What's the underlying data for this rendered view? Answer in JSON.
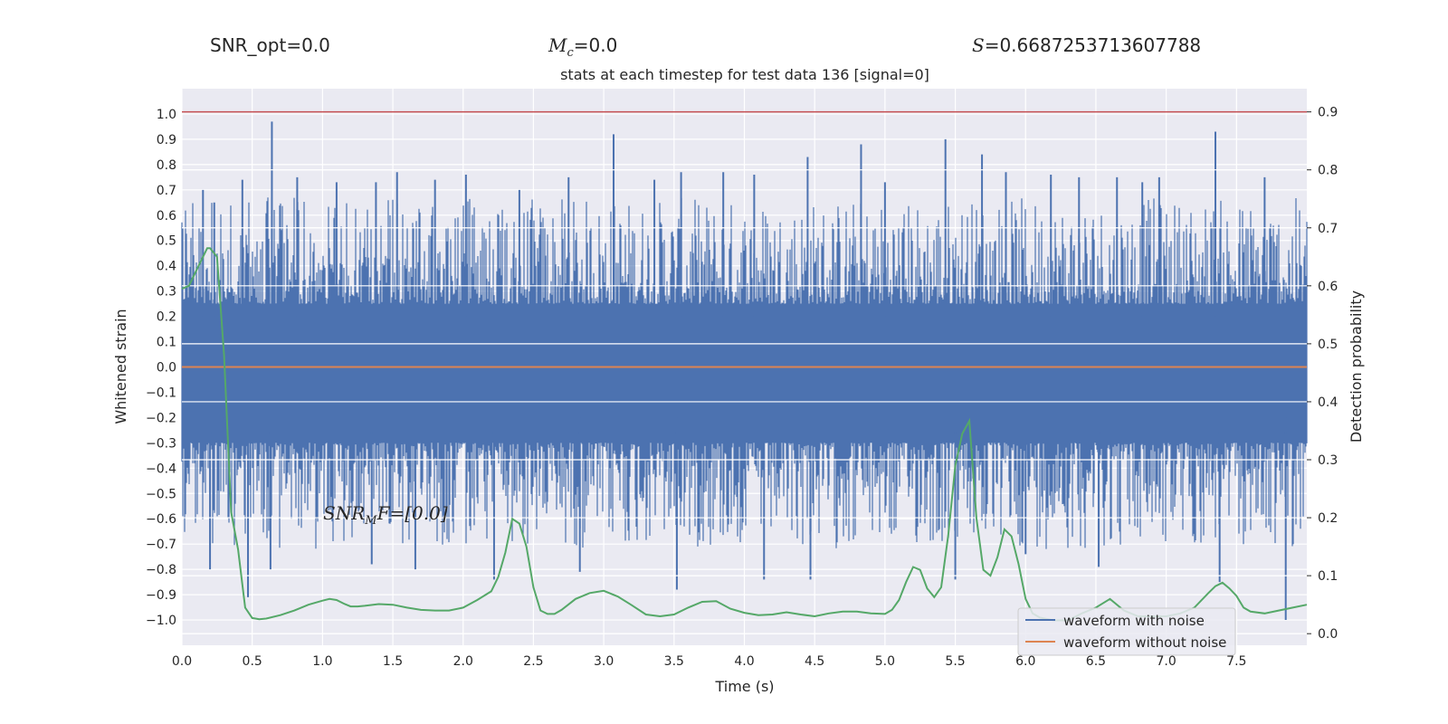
{
  "header": {
    "snr_opt_text": "SNR_opt=0.0",
    "mc_symbol": "M",
    "mc_sub": "c",
    "mc_value": "=0.0",
    "s_symbol": "S",
    "s_value": "=0.6687253713607788"
  },
  "chart_data": {
    "type": "line",
    "title": "stats at each timestep for test data 136 [signal=0]",
    "xlabel": "Time (s)",
    "ylabel": "Whitened strain",
    "y2label": "Detection probability",
    "xlim": [
      0.0,
      8.0
    ],
    "ylim": [
      -1.1,
      1.1
    ],
    "y2lim": [
      -0.02,
      0.94
    ],
    "xticks": [
      "0.0",
      "0.5",
      "1.0",
      "1.5",
      "2.0",
      "2.5",
      "3.0",
      "3.5",
      "4.0",
      "4.5",
      "5.0",
      "5.5",
      "6.0",
      "6.5",
      "7.0",
      "7.5"
    ],
    "yticks": [
      "1.0",
      "0.9",
      "0.8",
      "0.7",
      "0.6",
      "0.5",
      "0.4",
      "0.3",
      "0.2",
      "0.1",
      "0.0",
      "−0.1",
      "−0.2",
      "−0.3",
      "−0.4",
      "−0.5",
      "−0.6",
      "−0.7",
      "−0.8",
      "−0.9",
      "−1.0"
    ],
    "y2ticks": [
      "0.9",
      "0.8",
      "0.7",
      "0.6",
      "0.5",
      "0.4",
      "0.3",
      "0.2",
      "0.1",
      "0.0"
    ],
    "grid": true,
    "legend_position": "bottom-right",
    "annotation": {
      "symbol": "SNR",
      "sub": "M",
      "rest": "F=[0.0]",
      "x": 1.0,
      "y": -0.6
    },
    "threshold": {
      "value": 0.9,
      "color": "#c44e52"
    },
    "series": [
      {
        "name": "waveform with noise",
        "color": "#4c72b0",
        "axis": "left",
        "envelope_peaks": [
          {
            "x": 0.15,
            "y": 0.7
          },
          {
            "x": 0.23,
            "y": 0.65
          },
          {
            "x": 0.43,
            "y": 0.74
          },
          {
            "x": 0.64,
            "y": 0.97
          },
          {
            "x": 0.82,
            "y": 0.75
          },
          {
            "x": 1.1,
            "y": 0.73
          },
          {
            "x": 1.38,
            "y": 0.73
          },
          {
            "x": 1.53,
            "y": 0.77
          },
          {
            "x": 1.8,
            "y": 0.74
          },
          {
            "x": 2.02,
            "y": 0.76
          },
          {
            "x": 2.4,
            "y": 0.7
          },
          {
            "x": 2.75,
            "y": 0.75
          },
          {
            "x": 3.07,
            "y": 0.92
          },
          {
            "x": 3.36,
            "y": 0.74
          },
          {
            "x": 3.55,
            "y": 0.77
          },
          {
            "x": 3.85,
            "y": 0.77
          },
          {
            "x": 4.07,
            "y": 0.76
          },
          {
            "x": 4.45,
            "y": 0.83
          },
          {
            "x": 4.83,
            "y": 0.88
          },
          {
            "x": 5.0,
            "y": 0.73
          },
          {
            "x": 5.43,
            "y": 0.9
          },
          {
            "x": 5.69,
            "y": 0.84
          },
          {
            "x": 5.86,
            "y": 0.77
          },
          {
            "x": 6.18,
            "y": 0.76
          },
          {
            "x": 6.38,
            "y": 0.75
          },
          {
            "x": 6.65,
            "y": 0.75
          },
          {
            "x": 6.83,
            "y": 0.73
          },
          {
            "x": 6.95,
            "y": 0.75
          },
          {
            "x": 7.35,
            "y": 0.93
          },
          {
            "x": 7.7,
            "y": 0.75
          }
        ],
        "envelope_troughs": [
          {
            "x": 0.2,
            "y": -0.8
          },
          {
            "x": 0.47,
            "y": -0.91
          },
          {
            "x": 0.63,
            "y": -0.8
          },
          {
            "x": 1.35,
            "y": -0.78
          },
          {
            "x": 1.66,
            "y": -0.8
          },
          {
            "x": 2.22,
            "y": -0.84
          },
          {
            "x": 2.83,
            "y": -0.81
          },
          {
            "x": 3.52,
            "y": -0.88
          },
          {
            "x": 4.14,
            "y": -0.84
          },
          {
            "x": 4.47,
            "y": -0.84
          },
          {
            "x": 5.5,
            "y": -0.84
          },
          {
            "x": 6.0,
            "y": -0.74
          },
          {
            "x": 6.52,
            "y": -0.79
          },
          {
            "x": 7.38,
            "y": -0.85
          },
          {
            "x": 7.85,
            "y": -1.0
          }
        ]
      },
      {
        "name": "waveform without noise",
        "color": "#dd8452",
        "axis": "left",
        "x": [
          0.0,
          8.0
        ],
        "y": [
          0.0,
          0.0
        ]
      },
      {
        "color": "#55a868",
        "axis": "right",
        "x": [
          0.0,
          0.05,
          0.1,
          0.15,
          0.18,
          0.2,
          0.25,
          0.3,
          0.35,
          0.4,
          0.45,
          0.5,
          0.55,
          0.6,
          0.7,
          0.8,
          0.9,
          1.0,
          1.05,
          1.1,
          1.15,
          1.2,
          1.25,
          1.3,
          1.4,
          1.5,
          1.6,
          1.7,
          1.8,
          1.9,
          2.0,
          2.1,
          2.2,
          2.25,
          2.3,
          2.35,
          2.4,
          2.45,
          2.5,
          2.55,
          2.6,
          2.65,
          2.7,
          2.8,
          2.9,
          3.0,
          3.1,
          3.2,
          3.3,
          3.4,
          3.5,
          3.6,
          3.7,
          3.8,
          3.9,
          4.0,
          4.1,
          4.2,
          4.3,
          4.4,
          4.5,
          4.6,
          4.7,
          4.8,
          4.9,
          5.0,
          5.05,
          5.1,
          5.15,
          5.2,
          5.25,
          5.3,
          5.35,
          5.4,
          5.45,
          5.5,
          5.55,
          5.6,
          5.65,
          5.7,
          5.75,
          5.8,
          5.85,
          5.9,
          5.95,
          6.0,
          6.05,
          6.1,
          6.2,
          6.3,
          6.4,
          6.5,
          6.6,
          6.7,
          6.8,
          6.9,
          7.0,
          7.1,
          7.2,
          7.3,
          7.35,
          7.4,
          7.45,
          7.5,
          7.55,
          7.6,
          7.7,
          7.8,
          7.9,
          8.0
        ],
        "y": [
          0.595,
          0.6,
          0.625,
          0.65,
          0.665,
          0.665,
          0.65,
          0.48,
          0.21,
          0.145,
          0.045,
          0.027,
          0.025,
          0.026,
          0.032,
          0.04,
          0.05,
          0.057,
          0.06,
          0.058,
          0.052,
          0.047,
          0.047,
          0.048,
          0.051,
          0.05,
          0.045,
          0.041,
          0.04,
          0.04,
          0.045,
          0.058,
          0.073,
          0.098,
          0.14,
          0.198,
          0.19,
          0.15,
          0.08,
          0.04,
          0.034,
          0.034,
          0.041,
          0.06,
          0.07,
          0.074,
          0.064,
          0.049,
          0.033,
          0.03,
          0.033,
          0.045,
          0.055,
          0.056,
          0.043,
          0.036,
          0.032,
          0.033,
          0.037,
          0.033,
          0.03,
          0.035,
          0.038,
          0.038,
          0.035,
          0.034,
          0.041,
          0.058,
          0.089,
          0.115,
          0.11,
          0.078,
          0.063,
          0.08,
          0.17,
          0.29,
          0.345,
          0.367,
          0.2,
          0.11,
          0.1,
          0.132,
          0.18,
          0.168,
          0.12,
          0.06,
          0.035,
          0.028,
          0.023,
          0.023,
          0.035,
          0.045,
          0.06,
          0.04,
          0.03,
          0.03,
          0.03,
          0.035,
          0.045,
          0.07,
          0.082,
          0.088,
          0.078,
          0.065,
          0.045,
          0.038,
          0.035,
          0.04,
          0.045,
          0.05
        ]
      }
    ]
  }
}
